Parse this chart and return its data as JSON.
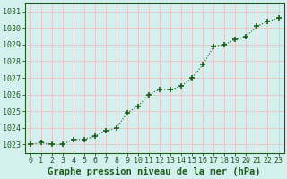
{
  "x": [
    0,
    1,
    2,
    3,
    4,
    5,
    6,
    7,
    8,
    9,
    10,
    11,
    12,
    13,
    14,
    15,
    16,
    17,
    18,
    19,
    20,
    21,
    22,
    23
  ],
  "y": [
    1023.0,
    1023.1,
    1023.0,
    1023.0,
    1023.3,
    1023.3,
    1023.5,
    1023.8,
    1024.0,
    1024.9,
    1025.3,
    1026.0,
    1026.3,
    1026.3,
    1026.5,
    1027.0,
    1027.8,
    1028.9,
    1029.0,
    1029.3,
    1029.5,
    1030.1,
    1030.4,
    1030.6
  ],
  "ylim": [
    1022.5,
    1031.5
  ],
  "yticks": [
    1023,
    1024,
    1025,
    1026,
    1027,
    1028,
    1029,
    1030,
    1031
  ],
  "xlim": [
    -0.5,
    23.5
  ],
  "xticks": [
    0,
    1,
    2,
    3,
    4,
    5,
    6,
    7,
    8,
    9,
    10,
    11,
    12,
    13,
    14,
    15,
    16,
    17,
    18,
    19,
    20,
    21,
    22,
    23
  ],
  "xlabel": "Graphe pression niveau de la mer (hPa)",
  "line_color": "#1a5c1a",
  "marker_color": "#1a5c1a",
  "bg_color": "#d4f0ee",
  "grid_color": "#e8c8c8",
  "xlabel_fontsize": 7.5,
  "tick_fontsize": 6.0,
  "figure_width": 3.2,
  "figure_height": 2.0,
  "dpi": 100
}
